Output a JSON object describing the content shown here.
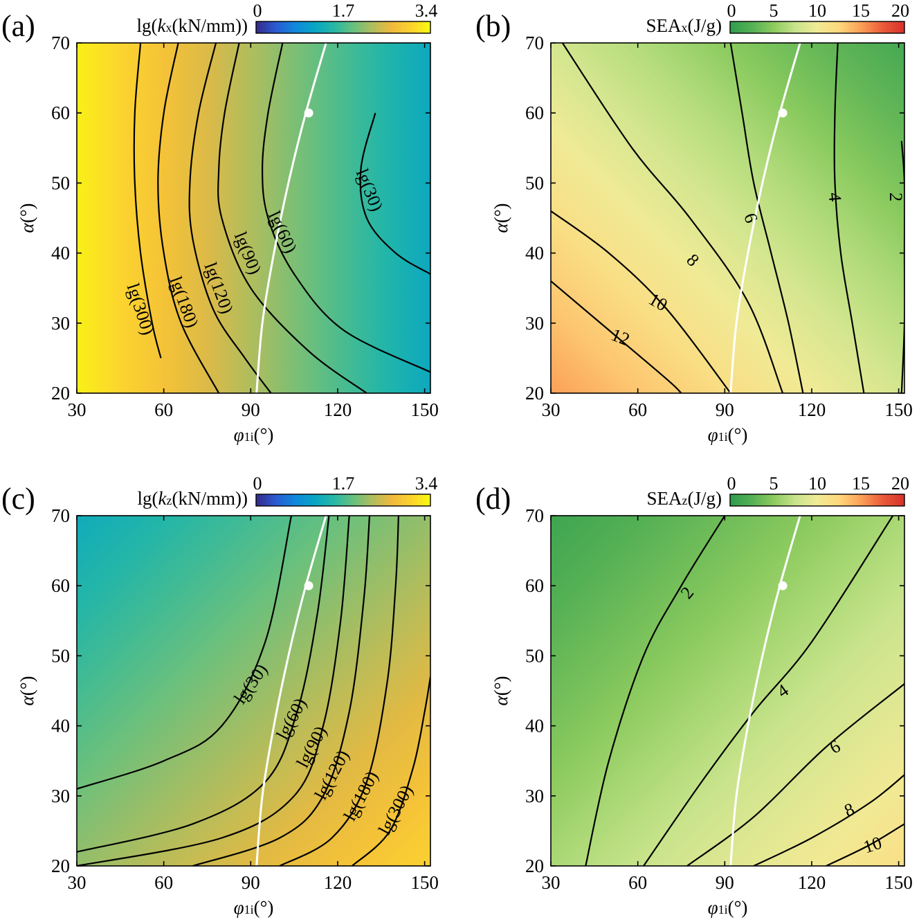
{
  "chart_data": [
    {
      "type": "heatmap",
      "panel_label": "(a)",
      "colorbar_label": {
        "pre": "lg(",
        "var": "k",
        "sub": "x",
        "post": "(kN/mm))"
      },
      "colormap": "parula",
      "colorbar_ticks": [
        "0",
        "1.7",
        "3.4"
      ],
      "colorbar_range": [
        0,
        3.4
      ],
      "xlabel": {
        "var": "φ",
        "sub": "1i",
        "post": "(°)"
      },
      "ylabel": {
        "var": "α",
        "post": "(°)"
      },
      "xlim": [
        30,
        152
      ],
      "ylim": [
        20,
        70
      ],
      "xticks": [
        30,
        60,
        90,
        120,
        150
      ],
      "yticks": [
        20,
        30,
        40,
        50,
        60,
        70
      ],
      "surface": {
        "value_range": [
          1.2,
          3.3
        ],
        "high_corner": "left",
        "low_corner": "top-right"
      },
      "contours": [
        {
          "label": "lg(300)",
          "points": [
            [
              52,
              70
            ],
            [
              50,
              60
            ],
            [
              50,
              50
            ],
            [
              52,
              40
            ],
            [
              56,
              30
            ],
            [
              59,
              25
            ]
          ],
          "label_at": [
            52,
            32
          ],
          "label_angle": 72
        },
        {
          "label": "lg(180)",
          "points": [
            [
              65,
              70
            ],
            [
              60,
              60
            ],
            [
              58,
              50
            ],
            [
              60,
              40
            ],
            [
              66,
              30
            ],
            [
              79,
              20
            ]
          ],
          "label_at": [
            67,
            33
          ],
          "label_angle": 70
        },
        {
          "label": "lg(120)",
          "points": [
            [
              78,
              70
            ],
            [
              72,
              60
            ],
            [
              69,
              50
            ],
            [
              70,
              42
            ],
            [
              77,
              32
            ],
            [
              88,
              25
            ],
            [
              97,
              20
            ]
          ],
          "label_at": [
            79,
            35
          ],
          "label_angle": 70
        },
        {
          "label": "lg(90)",
          "points": [
            [
              86,
              70
            ],
            [
              81,
              60
            ],
            [
              79,
              52
            ],
            [
              80,
              45
            ],
            [
              90,
              35
            ],
            [
              110,
              26
            ],
            [
              130,
              20
            ]
          ],
          "label_at": [
            89,
            40
          ],
          "label_angle": 68
        },
        {
          "label": "lg(60)",
          "points": [
            [
              101,
              70
            ],
            [
              96,
              60
            ],
            [
              94,
              52
            ],
            [
              96,
              45
            ],
            [
              105,
              37
            ],
            [
              122,
              29
            ],
            [
              152,
              23
            ]
          ],
          "label_at": [
            101,
            43
          ],
          "label_angle": 65
        },
        {
          "label": "lg(30)",
          "points": [
            [
              133,
              60
            ],
            [
              128,
              52
            ],
            [
              130,
              45
            ],
            [
              140,
              40
            ],
            [
              152,
              37
            ]
          ],
          "label_at": [
            131,
            49
          ],
          "label_angle": 68
        }
      ],
      "optimum_curve": [
        [
          92,
          20
        ],
        [
          94,
          30
        ],
        [
          98,
          40
        ],
        [
          103,
          50
        ],
        [
          109,
          60
        ],
        [
          116,
          70
        ]
      ],
      "marker": [
        110,
        60
      ]
    },
    {
      "type": "heatmap",
      "panel_label": "(b)",
      "colorbar_label": {
        "pre": "SEA",
        "var": "",
        "sub": "x",
        "post": "(J/g)"
      },
      "colormap": "green-yellow-red",
      "colorbar_ticks": [
        "0",
        "5",
        "10",
        "15",
        "20"
      ],
      "colorbar_range": [
        0,
        20
      ],
      "xlabel": {
        "var": "φ",
        "sub": "1i",
        "post": "(°)"
      },
      "ylabel": {
        "var": "α",
        "post": "(°)"
      },
      "xlim": [
        30,
        152
      ],
      "ylim": [
        20,
        70
      ],
      "xticks": [
        30,
        60,
        90,
        120,
        150
      ],
      "yticks": [
        20,
        30,
        40,
        50,
        60,
        70
      ],
      "surface": {
        "value_range": [
          1.5,
          15
        ],
        "high_corner": "bottom-left",
        "low_corner": "right"
      },
      "contours": [
        {
          "label": "2",
          "points": [
            [
              151,
              56
            ],
            [
              152,
              50
            ],
            [
              152,
              40
            ],
            [
              152,
              30
            ],
            [
              151,
              20
            ]
          ],
          "label_at": [
            149,
            48
          ],
          "label_angle": 90
        },
        {
          "label": "4",
          "points": [
            [
              129,
              70
            ],
            [
              128,
              60
            ],
            [
              128,
              50
            ],
            [
              130,
              40
            ],
            [
              134,
              30
            ],
            [
              138,
              20
            ]
          ],
          "label_at": [
            128,
            48
          ],
          "label_angle": 85
        },
        {
          "label": "6",
          "points": [
            [
              92,
              70
            ],
            [
              96,
              60
            ],
            [
              100,
              50
            ],
            [
              106,
              40
            ],
            [
              112,
              30
            ],
            [
              117,
              20
            ]
          ],
          "label_at": [
            99,
            45
          ],
          "label_angle": 70
        },
        {
          "label": "8",
          "points": [
            [
              34,
              70
            ],
            [
              58,
              55
            ],
            [
              78,
              45
            ],
            [
              98,
              33
            ],
            [
              110,
              20
            ]
          ],
          "label_at": [
            79,
            39
          ],
          "label_angle": 45
        },
        {
          "label": "10",
          "points": [
            [
              30,
              46
            ],
            [
              50,
              40
            ],
            [
              70,
              32
            ],
            [
              92,
              20
            ]
          ],
          "label_at": [
            67,
            33
          ],
          "label_angle": 30
        },
        {
          "label": "12",
          "points": [
            [
              30,
              36
            ],
            [
              50,
              29
            ],
            [
              70,
              22
            ],
            [
              75,
              20
            ]
          ],
          "label_at": [
            54,
            28
          ],
          "label_angle": 22
        }
      ],
      "optimum_curve": [
        [
          92,
          20
        ],
        [
          94,
          30
        ],
        [
          98,
          40
        ],
        [
          103,
          50
        ],
        [
          109,
          60
        ],
        [
          116,
          70
        ]
      ],
      "marker": [
        110,
        60
      ]
    },
    {
      "type": "heatmap",
      "panel_label": "(c)",
      "colorbar_label": {
        "pre": "lg(",
        "var": "k",
        "sub": "z",
        "post": "(kN/mm))"
      },
      "colormap": "parula",
      "colorbar_ticks": [
        "0",
        "1.7",
        "3.4"
      ],
      "colorbar_range": [
        0,
        3.4
      ],
      "xlabel": {
        "var": "φ",
        "sub": "1i",
        "post": "(°)"
      },
      "ylabel": {
        "var": "α",
        "post": "(°)"
      },
      "xlim": [
        30,
        152
      ],
      "ylim": [
        20,
        70
      ],
      "xticks": [
        30,
        60,
        90,
        120,
        150
      ],
      "yticks": [
        20,
        30,
        40,
        50,
        60,
        70
      ],
      "surface": {
        "value_range": [
          1.25,
          3.0
        ],
        "high_corner": "bottom-right",
        "low_corner": "top-left"
      },
      "contours": [
        {
          "label": "lg(30)",
          "points": [
            [
              30,
              31
            ],
            [
              60,
              35
            ],
            [
              80,
              40
            ],
            [
              95,
              52
            ],
            [
              104,
              70
            ]
          ],
          "label_at": [
            90,
            46
          ],
          "label_angle": -55
        },
        {
          "label": "lg(60)",
          "points": [
            [
              30,
              22
            ],
            [
              70,
              26
            ],
            [
              95,
              32
            ],
            [
              106,
              42
            ],
            [
              113,
              56
            ],
            [
              117,
              70
            ]
          ],
          "label_at": [
            104,
            41
          ],
          "label_angle": -62
        },
        {
          "label": "lg(90)",
          "points": [
            [
              30,
              20
            ],
            [
              80,
              24
            ],
            [
              105,
              30
            ],
            [
              115,
              40
            ],
            [
              121,
              55
            ],
            [
              124,
              70
            ]
          ],
          "label_at": [
            111,
            37
          ],
          "label_angle": -62
        },
        {
          "label": "lg(120)",
          "points": [
            [
              70,
              20
            ],
            [
              100,
              24
            ],
            [
              115,
              30
            ],
            [
              124,
              42
            ],
            [
              129,
              58
            ],
            [
              131,
              70
            ]
          ],
          "label_at": [
            118,
            33
          ],
          "label_angle": -62
        },
        {
          "label": "lg(180)",
          "points": [
            [
              100,
              20
            ],
            [
              118,
              24
            ],
            [
              130,
              32
            ],
            [
              137,
              46
            ],
            [
              140,
              60
            ],
            [
              141,
              70
            ]
          ],
          "label_at": [
            128,
            30
          ],
          "label_angle": -62
        },
        {
          "label": "lg(300)",
          "points": [
            [
              125,
              20
            ],
            [
              138,
              25
            ],
            [
              146,
              34
            ],
            [
              150,
              42
            ],
            [
              152,
              47
            ]
          ],
          "label_at": [
            140,
            28
          ],
          "label_angle": -62
        }
      ],
      "optimum_curve": [
        [
          92,
          20
        ],
        [
          94,
          30
        ],
        [
          98,
          40
        ],
        [
          103,
          50
        ],
        [
          109,
          60
        ],
        [
          116,
          70
        ]
      ],
      "marker": [
        110,
        60
      ]
    },
    {
      "type": "heatmap",
      "panel_label": "(d)",
      "colorbar_label": {
        "pre": "SEA",
        "var": "",
        "sub": "z",
        "post": "(J/g)"
      },
      "colormap": "green-yellow-red",
      "colorbar_ticks": [
        "0",
        "5",
        "10",
        "15",
        "20"
      ],
      "colorbar_range": [
        0,
        20
      ],
      "xlabel": {
        "var": "φ",
        "sub": "1i",
        "post": "(°)"
      },
      "ylabel": {
        "var": "α",
        "post": "(°)"
      },
      "xlim": [
        30,
        152
      ],
      "ylim": [
        20,
        70
      ],
      "xticks": [
        30,
        60,
        90,
        120,
        150
      ],
      "yticks": [
        20,
        30,
        40,
        50,
        60,
        70
      ],
      "surface": {
        "value_range": [
          1.0,
          11.5
        ],
        "high_corner": "bottom-right",
        "low_corner": "top-left"
      },
      "contours": [
        {
          "label": "2",
          "points": [
            [
              42,
              20
            ],
            [
              50,
              35
            ],
            [
              62,
              50
            ],
            [
              75,
              60
            ],
            [
              90,
              70
            ]
          ],
          "label_at": [
            77,
            59
          ],
          "label_angle": -50
        },
        {
          "label": "4",
          "points": [
            [
              62,
              20
            ],
            [
              82,
              32
            ],
            [
              100,
              42
            ],
            [
              120,
              52
            ],
            [
              148,
              70
            ]
          ],
          "label_at": [
            110,
            45
          ],
          "label_angle": -35
        },
        {
          "label": "6",
          "points": [
            [
              77,
              20
            ],
            [
              100,
              27
            ],
            [
              125,
              37
            ],
            [
              152,
              46
            ]
          ],
          "label_at": [
            128,
            37
          ],
          "label_angle": -28
        },
        {
          "label": "8",
          "points": [
            [
              100,
              20
            ],
            [
              120,
              24
            ],
            [
              140,
              29
            ],
            [
              152,
              33
            ]
          ],
          "label_at": [
            133,
            28
          ],
          "label_angle": -22
        },
        {
          "label": "10",
          "points": [
            [
              125,
              20
            ],
            [
              140,
              23
            ],
            [
              152,
              26
            ]
          ],
          "label_at": [
            141,
            23
          ],
          "label_angle": -18
        }
      ],
      "optimum_curve": [
        [
          92,
          20
        ],
        [
          94,
          30
        ],
        [
          98,
          40
        ],
        [
          103,
          50
        ],
        [
          109,
          60
        ],
        [
          116,
          70
        ]
      ],
      "marker": [
        110,
        60
      ]
    }
  ]
}
